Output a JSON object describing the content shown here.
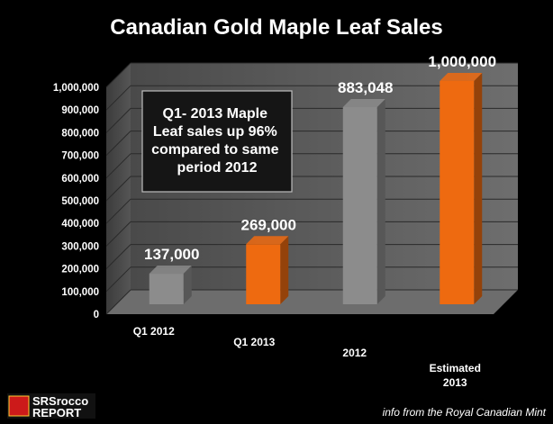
{
  "chart_data": {
    "type": "bar",
    "title": "Canadian Gold Maple Leaf Sales",
    "categories": [
      "Q1 2012",
      "Q1 2013",
      "2012",
      "Estimated 2013"
    ],
    "values": [
      137000,
      269000,
      883048,
      1000000
    ],
    "data_labels": [
      "137,000",
      "269,000",
      "883,048",
      "1,000,000"
    ],
    "bar_colors": [
      "#8c8c8c",
      "#ee6a10",
      "#8c8c8c",
      "#ee6a10"
    ],
    "ylim": [
      0,
      1000000
    ],
    "yticks": [
      0,
      100000,
      200000,
      300000,
      400000,
      500000,
      600000,
      700000,
      800000,
      900000,
      1000000
    ],
    "ytick_labels": [
      "0",
      "100,000",
      "200,000",
      "300,000",
      "400,000",
      "500,000",
      "600,000",
      "700,000",
      "800,000",
      "900,000",
      "1,000,000"
    ],
    "grid": true,
    "legend": "none",
    "style": "3d-column",
    "annotation": [
      "Q1- 2013 Maple",
      "Leaf sales up 96%",
      "compared to same",
      "period 2012"
    ]
  },
  "footer": {
    "source": "info from the Royal Canadian Mint",
    "logo_line1": "SRSrocco",
    "logo_line2": "REPORT"
  },
  "colors": {
    "background": "#000000",
    "wall": "#5a5a5a",
    "floor": "#6a6a6a",
    "gray_bar": "#8c8c8c",
    "orange_bar": "#ee6a10",
    "logo_red": "#cc1a1a"
  }
}
